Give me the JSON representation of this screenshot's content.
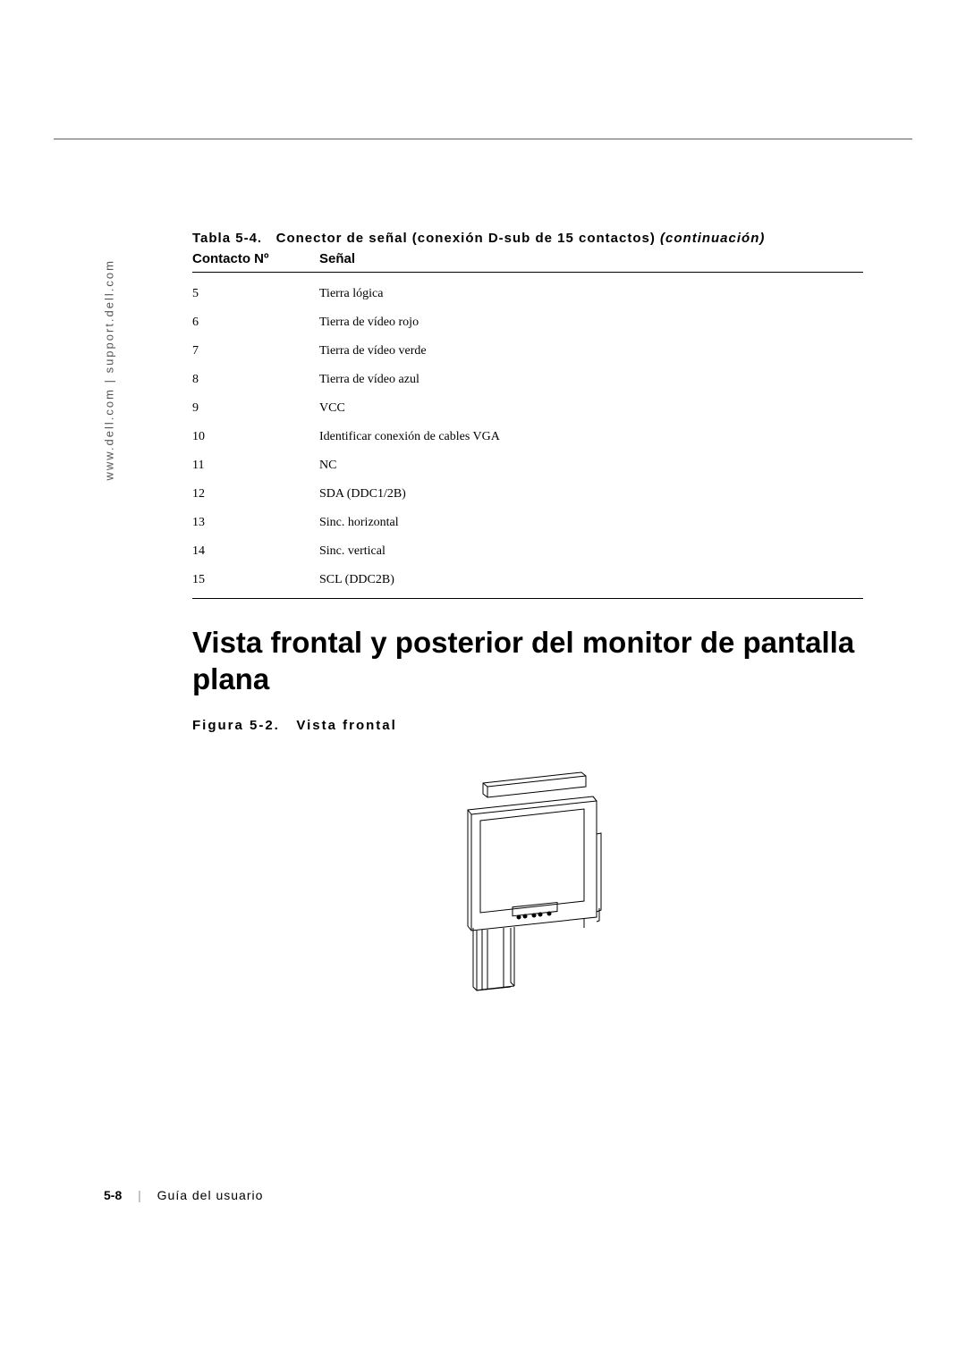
{
  "sidebar_text": "www.dell.com | support.dell.com",
  "table": {
    "caption_prefix": "Tabla 5-4.",
    "caption_main": "Conector de señal (conexión D-sub de 15 contactos)",
    "caption_suffix": "(continuación)",
    "header_contacto": "Contacto Nº",
    "header_senal": "Señal",
    "rows": [
      {
        "num": "5",
        "signal": "Tierra lógica"
      },
      {
        "num": "6",
        "signal": "Tierra de vídeo rojo"
      },
      {
        "num": "7",
        "signal": "Tierra de vídeo verde"
      },
      {
        "num": "8",
        "signal": "Tierra de vídeo azul"
      },
      {
        "num": "9",
        "signal": "VCC"
      },
      {
        "num": "10",
        "signal": "Identificar conexión de cables VGA"
      },
      {
        "num": "11",
        "signal": "NC"
      },
      {
        "num": "12",
        "signal": "SDA (DDC1/2B)"
      },
      {
        "num": "13",
        "signal": "Sinc. horizontal"
      },
      {
        "num": "14",
        "signal": "Sinc. vertical"
      },
      {
        "num": "15",
        "signal": "SCL (DDC2B)"
      }
    ]
  },
  "section_heading": "Vista frontal y posterior del monitor de pantalla plana",
  "figure_caption_prefix": "Figura 5-2.",
  "figure_caption_main": "Vista frontal",
  "footer": {
    "page_num": "5-8",
    "guide_text": "Guía del usuario"
  },
  "colors": {
    "border": "#c0392b",
    "text": "#000000",
    "sidebar_text": "#555555",
    "background": "#ffffff"
  },
  "figure": {
    "type": "line-drawing",
    "description": "front-view-flat-panel-monitor",
    "stroke": "#000000",
    "stroke_width": 1
  }
}
